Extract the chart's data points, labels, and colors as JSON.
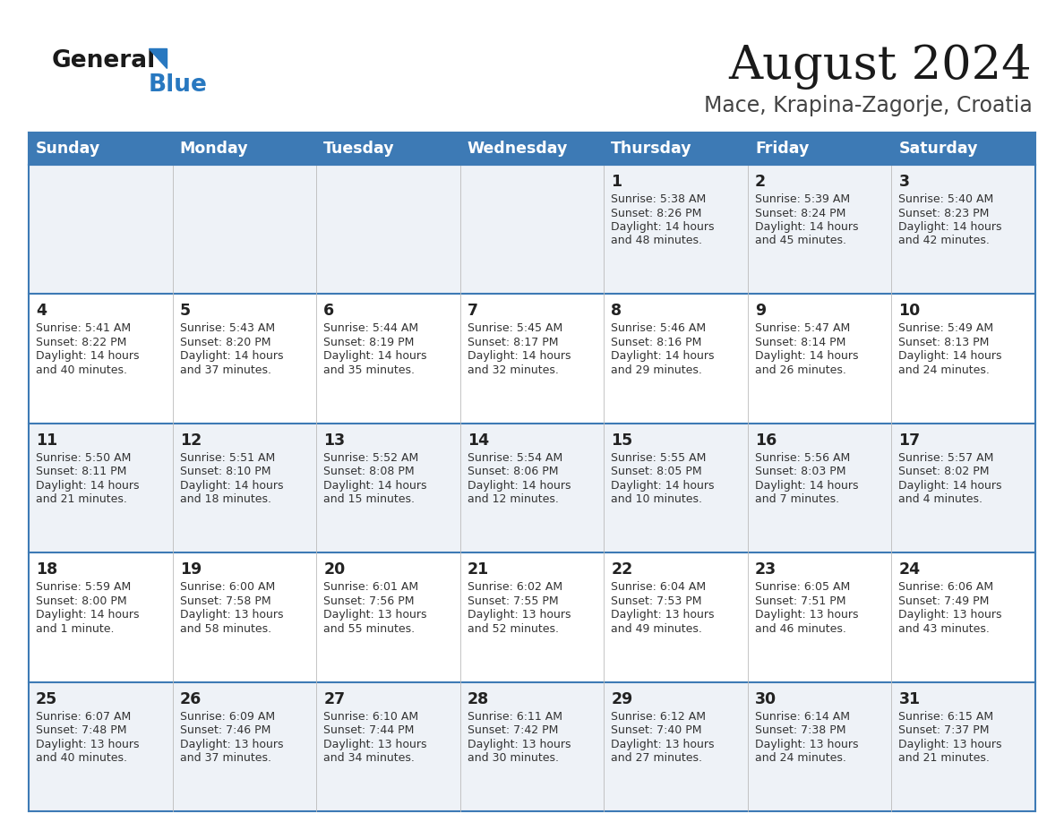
{
  "title": "August 2024",
  "subtitle": "Mace, Krapina-Zagorje, Croatia",
  "days_of_week": [
    "Sunday",
    "Monday",
    "Tuesday",
    "Wednesday",
    "Thursday",
    "Friday",
    "Saturday"
  ],
  "header_bg": "#3d7ab5",
  "header_text_color": "#ffffff",
  "row_bg_even": "#eef2f7",
  "row_bg_odd": "#ffffff",
  "border_color": "#3d7ab5",
  "day_num_color": "#222222",
  "cell_text_color": "#333333",
  "title_color": "#1a1a1a",
  "subtitle_color": "#444444",
  "calendar": [
    [
      {
        "day": "",
        "sunrise": "",
        "sunset": "",
        "daylight": ""
      },
      {
        "day": "",
        "sunrise": "",
        "sunset": "",
        "daylight": ""
      },
      {
        "day": "",
        "sunrise": "",
        "sunset": "",
        "daylight": ""
      },
      {
        "day": "",
        "sunrise": "",
        "sunset": "",
        "daylight": ""
      },
      {
        "day": "1",
        "sunrise": "5:38 AM",
        "sunset": "8:26 PM",
        "daylight_h": "14",
        "daylight_m": "48 minutes."
      },
      {
        "day": "2",
        "sunrise": "5:39 AM",
        "sunset": "8:24 PM",
        "daylight_h": "14",
        "daylight_m": "45 minutes."
      },
      {
        "day": "3",
        "sunrise": "5:40 AM",
        "sunset": "8:23 PM",
        "daylight_h": "14",
        "daylight_m": "42 minutes."
      }
    ],
    [
      {
        "day": "4",
        "sunrise": "5:41 AM",
        "sunset": "8:22 PM",
        "daylight_h": "14",
        "daylight_m": "40 minutes."
      },
      {
        "day": "5",
        "sunrise": "5:43 AM",
        "sunset": "8:20 PM",
        "daylight_h": "14",
        "daylight_m": "37 minutes."
      },
      {
        "day": "6",
        "sunrise": "5:44 AM",
        "sunset": "8:19 PM",
        "daylight_h": "14",
        "daylight_m": "35 minutes."
      },
      {
        "day": "7",
        "sunrise": "5:45 AM",
        "sunset": "8:17 PM",
        "daylight_h": "14",
        "daylight_m": "32 minutes."
      },
      {
        "day": "8",
        "sunrise": "5:46 AM",
        "sunset": "8:16 PM",
        "daylight_h": "14",
        "daylight_m": "29 minutes."
      },
      {
        "day": "9",
        "sunrise": "5:47 AM",
        "sunset": "8:14 PM",
        "daylight_h": "14",
        "daylight_m": "26 minutes."
      },
      {
        "day": "10",
        "sunrise": "5:49 AM",
        "sunset": "8:13 PM",
        "daylight_h": "14",
        "daylight_m": "24 minutes."
      }
    ],
    [
      {
        "day": "11",
        "sunrise": "5:50 AM",
        "sunset": "8:11 PM",
        "daylight_h": "14",
        "daylight_m": "21 minutes."
      },
      {
        "day": "12",
        "sunrise": "5:51 AM",
        "sunset": "8:10 PM",
        "daylight_h": "14",
        "daylight_m": "18 minutes."
      },
      {
        "day": "13",
        "sunrise": "5:52 AM",
        "sunset": "8:08 PM",
        "daylight_h": "14",
        "daylight_m": "15 minutes."
      },
      {
        "day": "14",
        "sunrise": "5:54 AM",
        "sunset": "8:06 PM",
        "daylight_h": "14",
        "daylight_m": "12 minutes."
      },
      {
        "day": "15",
        "sunrise": "5:55 AM",
        "sunset": "8:05 PM",
        "daylight_h": "14",
        "daylight_m": "10 minutes."
      },
      {
        "day": "16",
        "sunrise": "5:56 AM",
        "sunset": "8:03 PM",
        "daylight_h": "14",
        "daylight_m": "7 minutes."
      },
      {
        "day": "17",
        "sunrise": "5:57 AM",
        "sunset": "8:02 PM",
        "daylight_h": "14",
        "daylight_m": "4 minutes."
      }
    ],
    [
      {
        "day": "18",
        "sunrise": "5:59 AM",
        "sunset": "8:00 PM",
        "daylight_h": "14",
        "daylight_m": "1 minute."
      },
      {
        "day": "19",
        "sunrise": "6:00 AM",
        "sunset": "7:58 PM",
        "daylight_h": "13",
        "daylight_m": "58 minutes."
      },
      {
        "day": "20",
        "sunrise": "6:01 AM",
        "sunset": "7:56 PM",
        "daylight_h": "13",
        "daylight_m": "55 minutes."
      },
      {
        "day": "21",
        "sunrise": "6:02 AM",
        "sunset": "7:55 PM",
        "daylight_h": "13",
        "daylight_m": "52 minutes."
      },
      {
        "day": "22",
        "sunrise": "6:04 AM",
        "sunset": "7:53 PM",
        "daylight_h": "13",
        "daylight_m": "49 minutes."
      },
      {
        "day": "23",
        "sunrise": "6:05 AM",
        "sunset": "7:51 PM",
        "daylight_h": "13",
        "daylight_m": "46 minutes."
      },
      {
        "day": "24",
        "sunrise": "6:06 AM",
        "sunset": "7:49 PM",
        "daylight_h": "13",
        "daylight_m": "43 minutes."
      }
    ],
    [
      {
        "day": "25",
        "sunrise": "6:07 AM",
        "sunset": "7:48 PM",
        "daylight_h": "13",
        "daylight_m": "40 minutes."
      },
      {
        "day": "26",
        "sunrise": "6:09 AM",
        "sunset": "7:46 PM",
        "daylight_h": "13",
        "daylight_m": "37 minutes."
      },
      {
        "day": "27",
        "sunrise": "6:10 AM",
        "sunset": "7:44 PM",
        "daylight_h": "13",
        "daylight_m": "34 minutes."
      },
      {
        "day": "28",
        "sunrise": "6:11 AM",
        "sunset": "7:42 PM",
        "daylight_h": "13",
        "daylight_m": "30 minutes."
      },
      {
        "day": "29",
        "sunrise": "6:12 AM",
        "sunset": "7:40 PM",
        "daylight_h": "13",
        "daylight_m": "27 minutes."
      },
      {
        "day": "30",
        "sunrise": "6:14 AM",
        "sunset": "7:38 PM",
        "daylight_h": "13",
        "daylight_m": "24 minutes."
      },
      {
        "day": "31",
        "sunrise": "6:15 AM",
        "sunset": "7:37 PM",
        "daylight_h": "13",
        "daylight_m": "21 minutes."
      }
    ]
  ]
}
